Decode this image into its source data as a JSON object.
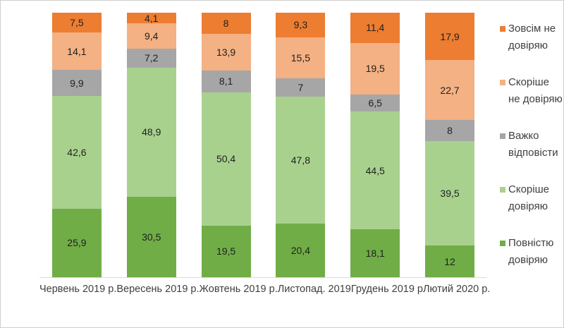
{
  "chart_data": {
    "type": "bar",
    "stacked": true,
    "title": "",
    "xlabel": "",
    "ylabel": "",
    "ylim": [
      0,
      100
    ],
    "grid": false,
    "legend_position": "right",
    "value_decimal_separator": ",",
    "categories": [
      "Червень 2019 р.",
      "Вересень 2019 р.",
      "Жовтень 2019 р.",
      "Листопад. 2019",
      "Грудень 2019 р",
      "Лютий 2020 р."
    ],
    "series": [
      {
        "name": "Повністю довіряю",
        "color": "#70AD47",
        "values": [
          25.9,
          30.5,
          19.5,
          20.4,
          18.1,
          12
        ]
      },
      {
        "name": "Скоріше довіряю",
        "color": "#A9D18E",
        "values": [
          42.6,
          48.9,
          50.4,
          47.8,
          44.5,
          39.5
        ]
      },
      {
        "name": "Важко відповісти",
        "color": "#A6A6A6",
        "values": [
          9.9,
          7.2,
          8.1,
          7,
          6.5,
          8
        ]
      },
      {
        "name": "Скоріше  не довіряю",
        "color": "#F4B183",
        "values": [
          14.1,
          9.4,
          13.9,
          15.5,
          19.5,
          22.7
        ]
      },
      {
        "name": "Зовсім не довіряю",
        "color": "#ED7D31",
        "values": [
          7.5,
          4.1,
          8,
          9.3,
          11.4,
          17.9
        ]
      }
    ],
    "legend_order_note": "legend lists series top-to-bottom in reverse stack order",
    "colors": {
      "frame_border": "#cfcfcf",
      "axis_line": "#d9d9d9",
      "data_label": "#1f1f1f",
      "axis_label": "#3f3f3f",
      "background": "#ffffff"
    }
  }
}
